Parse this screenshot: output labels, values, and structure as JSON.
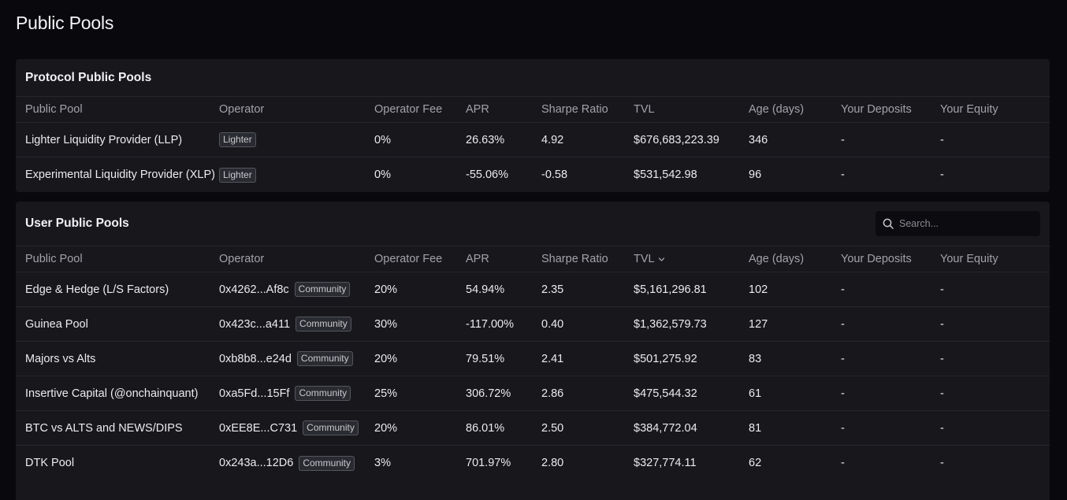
{
  "page": {
    "title": "Public Pools"
  },
  "protocol": {
    "title": "Protocol Public Pools",
    "columns": [
      "Public Pool",
      "Operator",
      "Operator Fee",
      "APR",
      "Sharpe Ratio",
      "TVL",
      "Age (days)",
      "Your Deposits",
      "Your Equity"
    ],
    "rows": [
      {
        "name": "Lighter Liquidity Provider (LLP)",
        "operator": "",
        "badge": "Lighter",
        "fee": "0%",
        "apr": "26.63%",
        "sharpe": "4.92",
        "tvl": "$676,683,223.39",
        "age": "346",
        "deposits": "-",
        "equity": "-"
      },
      {
        "name": "Experimental Liquidity Provider (XLP)",
        "operator": "",
        "badge": "Lighter",
        "fee": "0%",
        "apr": "-55.06%",
        "sharpe": "-0.58",
        "tvl": "$531,542.98",
        "age": "96",
        "deposits": "-",
        "equity": "-"
      }
    ]
  },
  "user": {
    "title": "User Public Pools",
    "search_placeholder": "Search...",
    "columns": [
      "Public Pool",
      "Operator",
      "Operator Fee",
      "APR",
      "Sharpe Ratio",
      "TVL",
      "Age (days)",
      "Your Deposits",
      "Your Equity"
    ],
    "rows": [
      {
        "name": "Edge & Hedge (L/S Factors)",
        "operator": "0x4262...Af8c",
        "badge": "Community",
        "fee": "20%",
        "apr": "54.94%",
        "sharpe": "2.35",
        "tvl": "$5,161,296.81",
        "age": "102",
        "deposits": "-",
        "equity": "-"
      },
      {
        "name": "Guinea Pool",
        "operator": "0x423c...a411",
        "badge": "Community",
        "fee": "30%",
        "apr": "-117.00%",
        "sharpe": "0.40",
        "tvl": "$1,362,579.73",
        "age": "127",
        "deposits": "-",
        "equity": "-"
      },
      {
        "name": "Majors vs Alts",
        "operator": "0xb8b8...e24d",
        "badge": "Community",
        "fee": "20%",
        "apr": "79.51%",
        "sharpe": "2.41",
        "tvl": "$501,275.92",
        "age": "83",
        "deposits": "-",
        "equity": "-"
      },
      {
        "name": "Insertive Capital (@onchainquant)",
        "operator": "0xa5Fd...15Ff",
        "badge": "Community",
        "fee": "25%",
        "apr": "306.72%",
        "sharpe": "2.86",
        "tvl": "$475,544.32",
        "age": "61",
        "deposits": "-",
        "equity": "-"
      },
      {
        "name": "BTC vs ALTS and NEWS/DIPS",
        "operator": "0xEE8E...C731",
        "badge": "Community",
        "fee": "20%",
        "apr": "86.01%",
        "sharpe": "2.50",
        "tvl": "$384,772.04",
        "age": "81",
        "deposits": "-",
        "equity": "-"
      },
      {
        "name": "DTK Pool",
        "operator": "0x243a...12D6",
        "badge": "Community",
        "fee": "3%",
        "apr": "701.97%",
        "sharpe": "2.80",
        "tvl": "$327,774.11",
        "age": "62",
        "deposits": "-",
        "equity": "-"
      }
    ]
  },
  "colors": {
    "background": "#08080d",
    "card": "#17171c",
    "border": "#26262d",
    "muted_text": "#a2a2aa"
  },
  "icons": {
    "search": "search-icon",
    "sort": "chevron-down-icon"
  }
}
